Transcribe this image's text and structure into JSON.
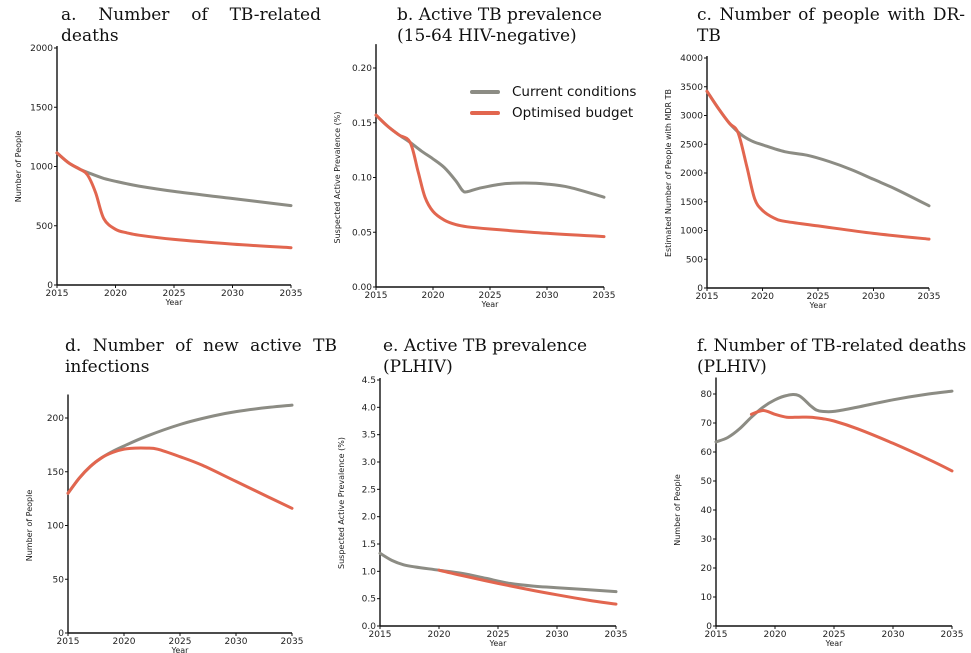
{
  "legend": {
    "items": [
      {
        "label": "Current conditions",
        "color": "#8c8c84"
      },
      {
        "label": "Optimised budget",
        "color": "#e2664f"
      }
    ]
  },
  "chart_data": [
    {
      "id": "a",
      "type": "line",
      "title_lines": [
        "a. Number of TB-related",
        "deaths"
      ],
      "xlabel": "Year",
      "ylabel": "Number of People",
      "xlim": [
        2015,
        2035
      ],
      "ylim": [
        0,
        2000
      ],
      "xticks": [
        2015,
        2020,
        2025,
        2030,
        2035
      ],
      "yticks": [
        0,
        500,
        1000,
        1500,
        2000
      ],
      "series": [
        {
          "name": "Current conditions",
          "color": "#8c8c84",
          "points": [
            [
              2015,
              1115
            ],
            [
              2016,
              1030
            ],
            [
              2017,
              975
            ],
            [
              2018,
              935
            ],
            [
              2019,
              900
            ],
            [
              2020,
              875
            ],
            [
              2022,
              835
            ],
            [
              2025,
              790
            ],
            [
              2030,
              730
            ],
            [
              2035,
              670
            ]
          ]
        },
        {
          "name": "Optimised budget",
          "color": "#e2664f",
          "points": [
            [
              2015,
              1115
            ],
            [
              2016,
              1030
            ],
            [
              2017,
              975
            ],
            [
              2017.6,
              930
            ],
            [
              2018.3,
              780
            ],
            [
              2019,
              560
            ],
            [
              2020,
              470
            ],
            [
              2021,
              440
            ],
            [
              2022,
              420
            ],
            [
              2025,
              385
            ],
            [
              2030,
              345
            ],
            [
              2035,
              315
            ]
          ]
        }
      ]
    },
    {
      "id": "b",
      "type": "line",
      "title_lines": [
        "b. Active TB prevalence",
        "(15-64 HIV-negative)"
      ],
      "xlabel": "Year",
      "ylabel": "Suspected Active Prevalence (%)",
      "xlim": [
        2015,
        2035
      ],
      "ylim": [
        0,
        0.22
      ],
      "xticks": [
        2015,
        2020,
        2025,
        2030,
        2035
      ],
      "yticks": [
        0.0,
        0.05,
        0.1,
        0.15,
        0.2
      ],
      "series": [
        {
          "name": "Current conditions",
          "color": "#8c8c84",
          "points": [
            [
              2015,
              0.157
            ],
            [
              2016,
              0.147
            ],
            [
              2017,
              0.139
            ],
            [
              2018,
              0.132
            ],
            [
              2019,
              0.124
            ],
            [
              2020,
              0.117
            ],
            [
              2021,
              0.109
            ],
            [
              2022,
              0.097
            ],
            [
              2022.6,
              0.088
            ],
            [
              2023,
              0.087
            ],
            [
              2024,
              0.09
            ],
            [
              2026,
              0.094
            ],
            [
              2028,
              0.095
            ],
            [
              2030,
              0.094
            ],
            [
              2032,
              0.091
            ],
            [
              2035,
              0.082
            ]
          ]
        },
        {
          "name": "Optimised budget",
          "color": "#e2664f",
          "points": [
            [
              2015,
              0.157
            ],
            [
              2016,
              0.147
            ],
            [
              2017,
              0.139
            ],
            [
              2018,
              0.132
            ],
            [
              2018.7,
              0.105
            ],
            [
              2019.3,
              0.082
            ],
            [
              2020,
              0.069
            ],
            [
              2021,
              0.061
            ],
            [
              2022,
              0.057
            ],
            [
              2023,
              0.055
            ],
            [
              2025,
              0.053
            ],
            [
              2030,
              0.049
            ],
            [
              2035,
              0.046
            ]
          ]
        }
      ]
    },
    {
      "id": "c",
      "type": "line",
      "title_lines": [
        "c. Number of people with DR-",
        "TB"
      ],
      "xlabel": "Year",
      "ylabel": "Estimated Number of People with MDR TB",
      "xlim": [
        2015,
        2035
      ],
      "ylim": [
        0,
        4000
      ],
      "xticks": [
        2015,
        2020,
        2025,
        2030,
        2035
      ],
      "yticks": [
        0,
        500,
        1000,
        1500,
        2000,
        2500,
        3000,
        3500,
        4000
      ],
      "series": [
        {
          "name": "Current conditions",
          "color": "#8c8c84",
          "points": [
            [
              2015,
              3420
            ],
            [
              2016,
              3130
            ],
            [
              2017,
              2870
            ],
            [
              2018,
              2680
            ],
            [
              2019,
              2560
            ],
            [
              2020,
              2490
            ],
            [
              2022,
              2370
            ],
            [
              2024,
              2310
            ],
            [
              2026,
              2200
            ],
            [
              2028,
              2060
            ],
            [
              2030,
              1890
            ],
            [
              2032,
              1720
            ],
            [
              2035,
              1430
            ]
          ]
        },
        {
          "name": "Optimised budget",
          "color": "#e2664f",
          "points": [
            [
              2015,
              3420
            ],
            [
              2016,
              3130
            ],
            [
              2017,
              2870
            ],
            [
              2017.8,
              2700
            ],
            [
              2018.6,
              2100
            ],
            [
              2019.3,
              1550
            ],
            [
              2020,
              1350
            ],
            [
              2021,
              1220
            ],
            [
              2022,
              1160
            ],
            [
              2025,
              1080
            ],
            [
              2030,
              950
            ],
            [
              2035,
              850
            ]
          ]
        }
      ]
    },
    {
      "id": "d",
      "type": "line",
      "title_lines": [
        "d. Number of new active TB",
        "infections"
      ],
      "xlabel": "Year",
      "ylabel": "Number of People",
      "xlim": [
        2015,
        2035
      ],
      "ylim": [
        0,
        220
      ],
      "xticks": [
        2015,
        2020,
        2025,
        2030,
        2035
      ],
      "yticks": [
        0,
        50,
        100,
        150,
        200
      ],
      "series": [
        {
          "name": "Current conditions",
          "color": "#8c8c84",
          "points": [
            [
              2015,
              130
            ],
            [
              2016,
              144
            ],
            [
              2017,
              155
            ],
            [
              2018,
              163
            ],
            [
              2019,
              169
            ],
            [
              2020,
              174
            ],
            [
              2022,
              183
            ],
            [
              2025,
              194
            ],
            [
              2028,
              202
            ],
            [
              2030,
              206
            ],
            [
              2033,
              210
            ],
            [
              2035,
              212
            ]
          ]
        },
        {
          "name": "Optimised budget",
          "color": "#e2664f",
          "points": [
            [
              2015,
              130
            ],
            [
              2016,
              144
            ],
            [
              2017,
              155
            ],
            [
              2018,
              163
            ],
            [
              2019,
              168
            ],
            [
              2020,
              171
            ],
            [
              2021,
              172
            ],
            [
              2022,
              172
            ],
            [
              2023,
              171
            ],
            [
              2025,
              164
            ],
            [
              2027,
              156
            ],
            [
              2030,
              141
            ],
            [
              2033,
              126
            ],
            [
              2035,
              116
            ]
          ]
        }
      ]
    },
    {
      "id": "e",
      "type": "line",
      "title_lines": [
        "e. Active TB prevalence",
        "(PLHIV)"
      ],
      "xlabel": "Year",
      "ylabel": "Suspected Active Prevalence (%)",
      "xlim": [
        2015,
        2035
      ],
      "ylim": [
        0,
        4.5
      ],
      "xticks": [
        2015,
        2020,
        2025,
        2030,
        2035
      ],
      "yticks": [
        0.0,
        0.5,
        1.0,
        1.5,
        2.0,
        2.5,
        3.0,
        3.5,
        4.0,
        4.5
      ],
      "series": [
        {
          "name": "Current conditions",
          "color": "#8c8c84",
          "points": [
            [
              2015,
              1.33
            ],
            [
              2016,
              1.2
            ],
            [
              2017,
              1.12
            ],
            [
              2018,
              1.08
            ],
            [
              2020,
              1.02
            ],
            [
              2022,
              0.96
            ],
            [
              2024,
              0.87
            ],
            [
              2026,
              0.78
            ],
            [
              2028,
              0.73
            ],
            [
              2030,
              0.7
            ],
            [
              2035,
              0.63
            ]
          ]
        },
        {
          "name": "Optimised budget",
          "color": "#e2664f",
          "points": [
            [
              2020,
              1.02
            ],
            [
              2022,
              0.92
            ],
            [
              2025,
              0.78
            ],
            [
              2028,
              0.65
            ],
            [
              2030,
              0.57
            ],
            [
              2033,
              0.46
            ],
            [
              2035,
              0.4
            ]
          ]
        }
      ]
    },
    {
      "id": "f",
      "type": "line",
      "title_lines": [
        "f. Number of TB-related deaths",
        "(PLHIV)"
      ],
      "xlabel": "Year",
      "ylabel": "Number of People",
      "xlim": [
        2015,
        2035
      ],
      "ylim": [
        0,
        85
      ],
      "xticks": [
        2015,
        2020,
        2025,
        2030,
        2035
      ],
      "yticks": [
        0,
        10,
        20,
        30,
        40,
        50,
        60,
        70,
        80
      ],
      "series": [
        {
          "name": "Current conditions",
          "color": "#8c8c84",
          "points": [
            [
              2015,
              63.5
            ],
            [
              2016,
              65
            ],
            [
              2017,
              68
            ],
            [
              2018,
              72
            ],
            [
              2019,
              75.5
            ],
            [
              2020,
              78
            ],
            [
              2021,
              79.5
            ],
            [
              2022,
              79.5
            ],
            [
              2023,
              76
            ],
            [
              2023.5,
              74.5
            ],
            [
              2024,
              74
            ],
            [
              2025,
              74
            ],
            [
              2027,
              75.5
            ],
            [
              2030,
              78
            ],
            [
              2033,
              80
            ],
            [
              2035,
              81
            ]
          ]
        },
        {
          "name": "Optimised budget",
          "color": "#e2664f",
          "points": [
            [
              2018,
              73
            ],
            [
              2019,
              74.3
            ],
            [
              2020,
              73
            ],
            [
              2021,
              72
            ],
            [
              2022,
              72
            ],
            [
              2023,
              72
            ],
            [
              2024,
              71.5
            ],
            [
              2025,
              70.7
            ],
            [
              2027,
              68
            ],
            [
              2030,
              63
            ],
            [
              2033,
              57.5
            ],
            [
              2035,
              53.5
            ]
          ]
        }
      ]
    }
  ]
}
